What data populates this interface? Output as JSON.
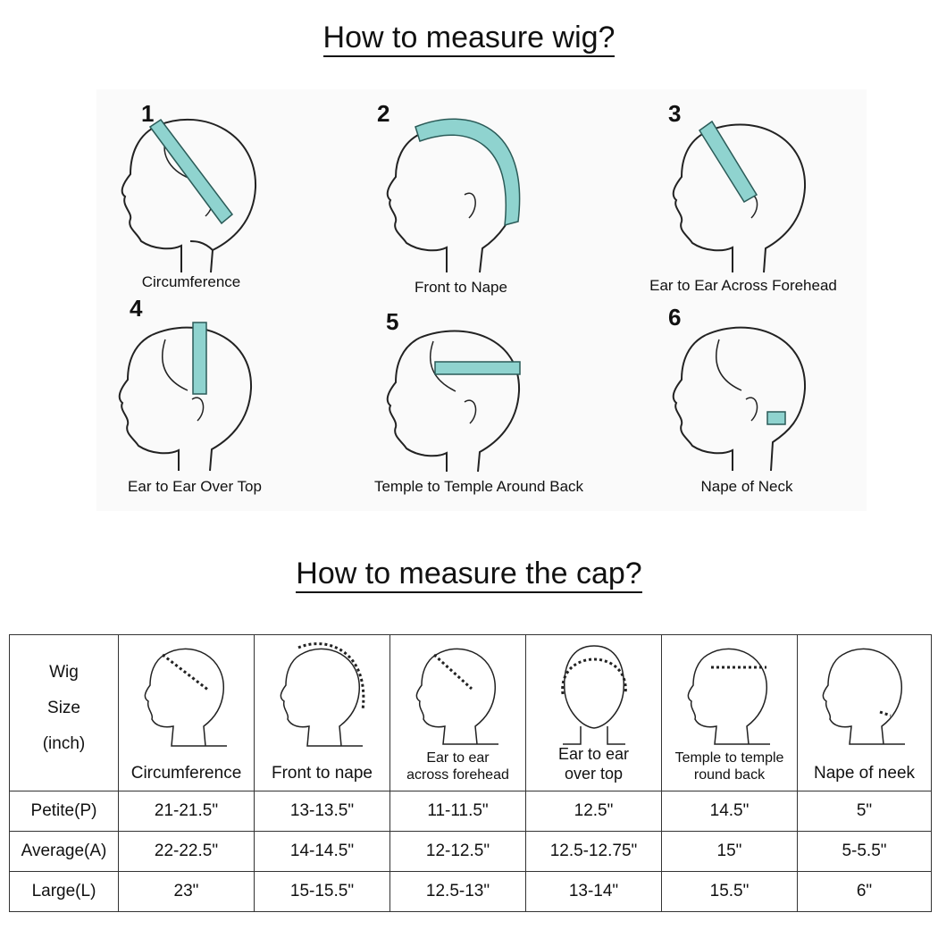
{
  "titles": {
    "measure_wig": "How to measure wig?",
    "measure_cap": "How to measure the cap?"
  },
  "figures": [
    {
      "number": "1",
      "caption": "Circumference"
    },
    {
      "number": "2",
      "caption": "Front to Nape"
    },
    {
      "number": "3",
      "caption": "Ear to Ear Across Forehead"
    },
    {
      "number": "4",
      "caption": "Ear to Ear Over Top"
    },
    {
      "number": "5",
      "caption": "Temple to Temple Around Back"
    },
    {
      "number": "6",
      "caption": "Nape of Neck"
    }
  ],
  "table": {
    "corner_lines": [
      "Wig",
      "Size",
      "(inch)"
    ],
    "columns": [
      {
        "lines": [
          "Circumference"
        ]
      },
      {
        "lines": [
          "Front to nape"
        ]
      },
      {
        "lines": [
          "Ear to ear",
          "across forehead"
        ]
      },
      {
        "lines": [
          "Ear to ear",
          "over top"
        ]
      },
      {
        "lines": [
          "Temple to temple",
          "round back"
        ]
      },
      {
        "lines": [
          "Nape of neek"
        ]
      }
    ],
    "rows": [
      {
        "size": "Petite(P)",
        "values": [
          "21-21.5\"",
          "13-13.5\"",
          "11-11.5\"",
          "12.5\"",
          "14.5\"",
          "5\""
        ]
      },
      {
        "size": "Average(A)",
        "values": [
          "22-22.5\"",
          "14-14.5\"",
          "12-12.5\"",
          "12.5-12.75\"",
          "15\"",
          "5-5.5\""
        ]
      },
      {
        "size": "Large(L)",
        "values": [
          "23\"",
          "15-15.5\"",
          "12.5-13\"",
          "13-14\"",
          "15.5\"",
          "6\""
        ]
      }
    ]
  },
  "colors": {
    "tape": "#8fd3cf",
    "tape_stroke": "#2b5b58",
    "line": "#222222",
    "panel": "#fafafa"
  }
}
